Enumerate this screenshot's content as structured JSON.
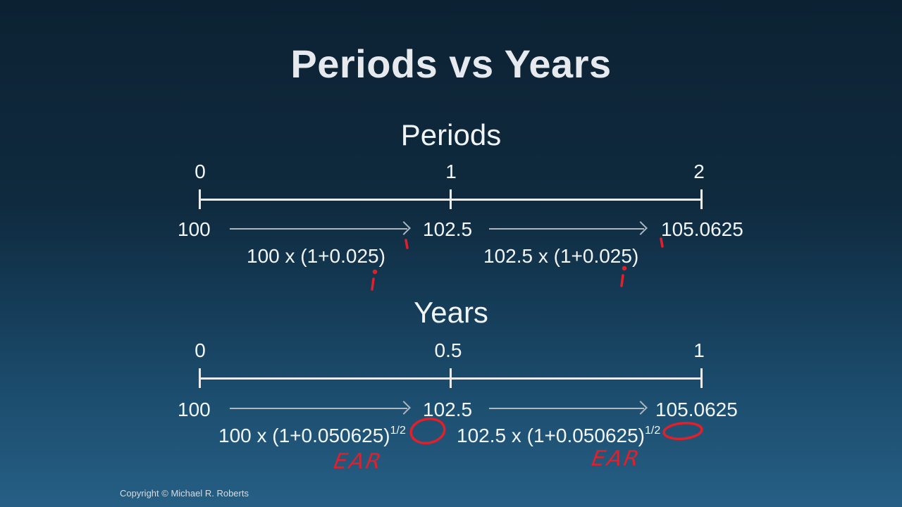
{
  "title": "Periods vs Years",
  "periods": {
    "heading": "Periods",
    "ticks": [
      "0",
      "1",
      "2"
    ],
    "values": [
      "100",
      "102.5",
      "105.0625"
    ],
    "formula1": "100 x (1+0.025)",
    "formula2": "102.5 x (1+0.025)"
  },
  "years": {
    "heading": "Years",
    "ticks": [
      "0",
      "0.5",
      "1"
    ],
    "values": [
      "100",
      "102.5",
      "105.0625"
    ],
    "formula1": "100 x (1+0.050625)",
    "formula2": "102.5 x (1+0.050625)",
    "exponent": "1/2"
  },
  "annotations": {
    "ear_label": "EAR",
    "ink_color": "#e0202a"
  },
  "copyright": "Copyright © Michael R. Roberts"
}
